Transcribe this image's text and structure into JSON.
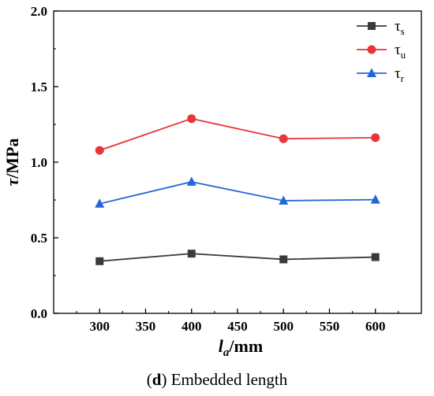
{
  "chart_data": {
    "type": "line",
    "x": [
      300,
      400,
      500,
      600
    ],
    "xlim": [
      250,
      650
    ],
    "ylim": [
      0.0,
      2.0
    ],
    "xticks": [
      "300",
      "350",
      "400",
      "450",
      "500",
      "550",
      "600"
    ],
    "yticks": [
      "0.0",
      "0.5",
      "1.0",
      "1.5",
      "2.0"
    ],
    "xlabel": {
      "main": "l",
      "sub": "a",
      "rest": "/mm"
    },
    "ylabel": {
      "main": "τ",
      "rest": "/MPa"
    },
    "series": [
      {
        "name_main": "τ",
        "name_sub": "s",
        "color": "#3a3a3a",
        "marker": "square",
        "values": [
          0.345,
          0.395,
          0.357,
          0.372
        ]
      },
      {
        "name_main": "τ",
        "name_sub": "u",
        "color": "#e8343a",
        "marker": "circle",
        "values": [
          1.078,
          1.288,
          1.155,
          1.162
        ]
      },
      {
        "name_main": "τ",
        "name_sub": "r",
        "color": "#2566d6",
        "marker": "triangle",
        "values": [
          0.725,
          0.87,
          0.745,
          0.752
        ]
      }
    ],
    "grid": false,
    "legend": "top-right"
  },
  "caption": {
    "open": "(",
    "letter": "d",
    "close": ")",
    "text": " Embedded length"
  }
}
